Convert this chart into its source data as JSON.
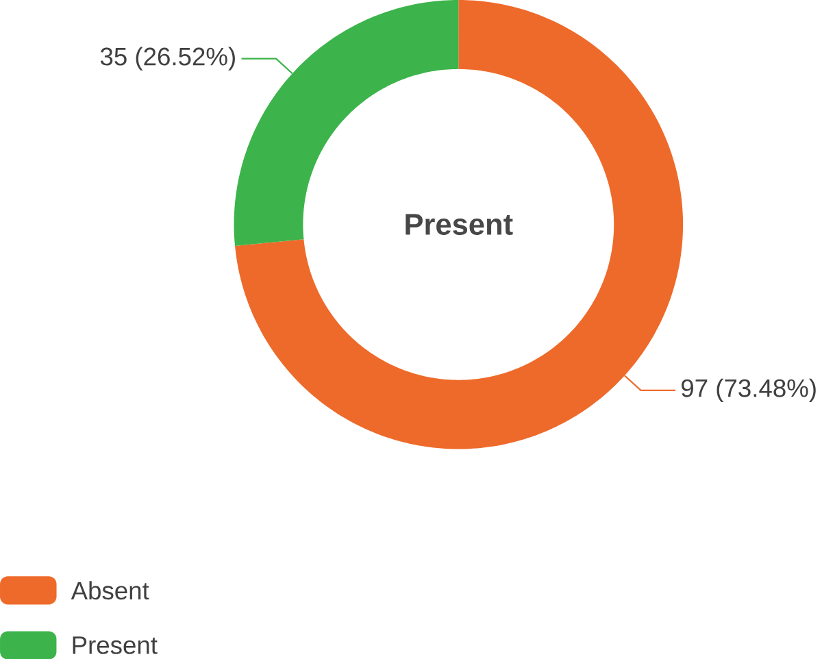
{
  "chart_data": {
    "type": "donut",
    "title": "Present",
    "categories": [
      "Absent",
      "Present"
    ],
    "values": [
      97,
      35
    ],
    "colors": [
      "#ee6a2a",
      "#3cb44b"
    ],
    "value_labels": [
      "97 (73.48%)",
      "35 (26.52%)"
    ],
    "legend": "bottom left"
  }
}
